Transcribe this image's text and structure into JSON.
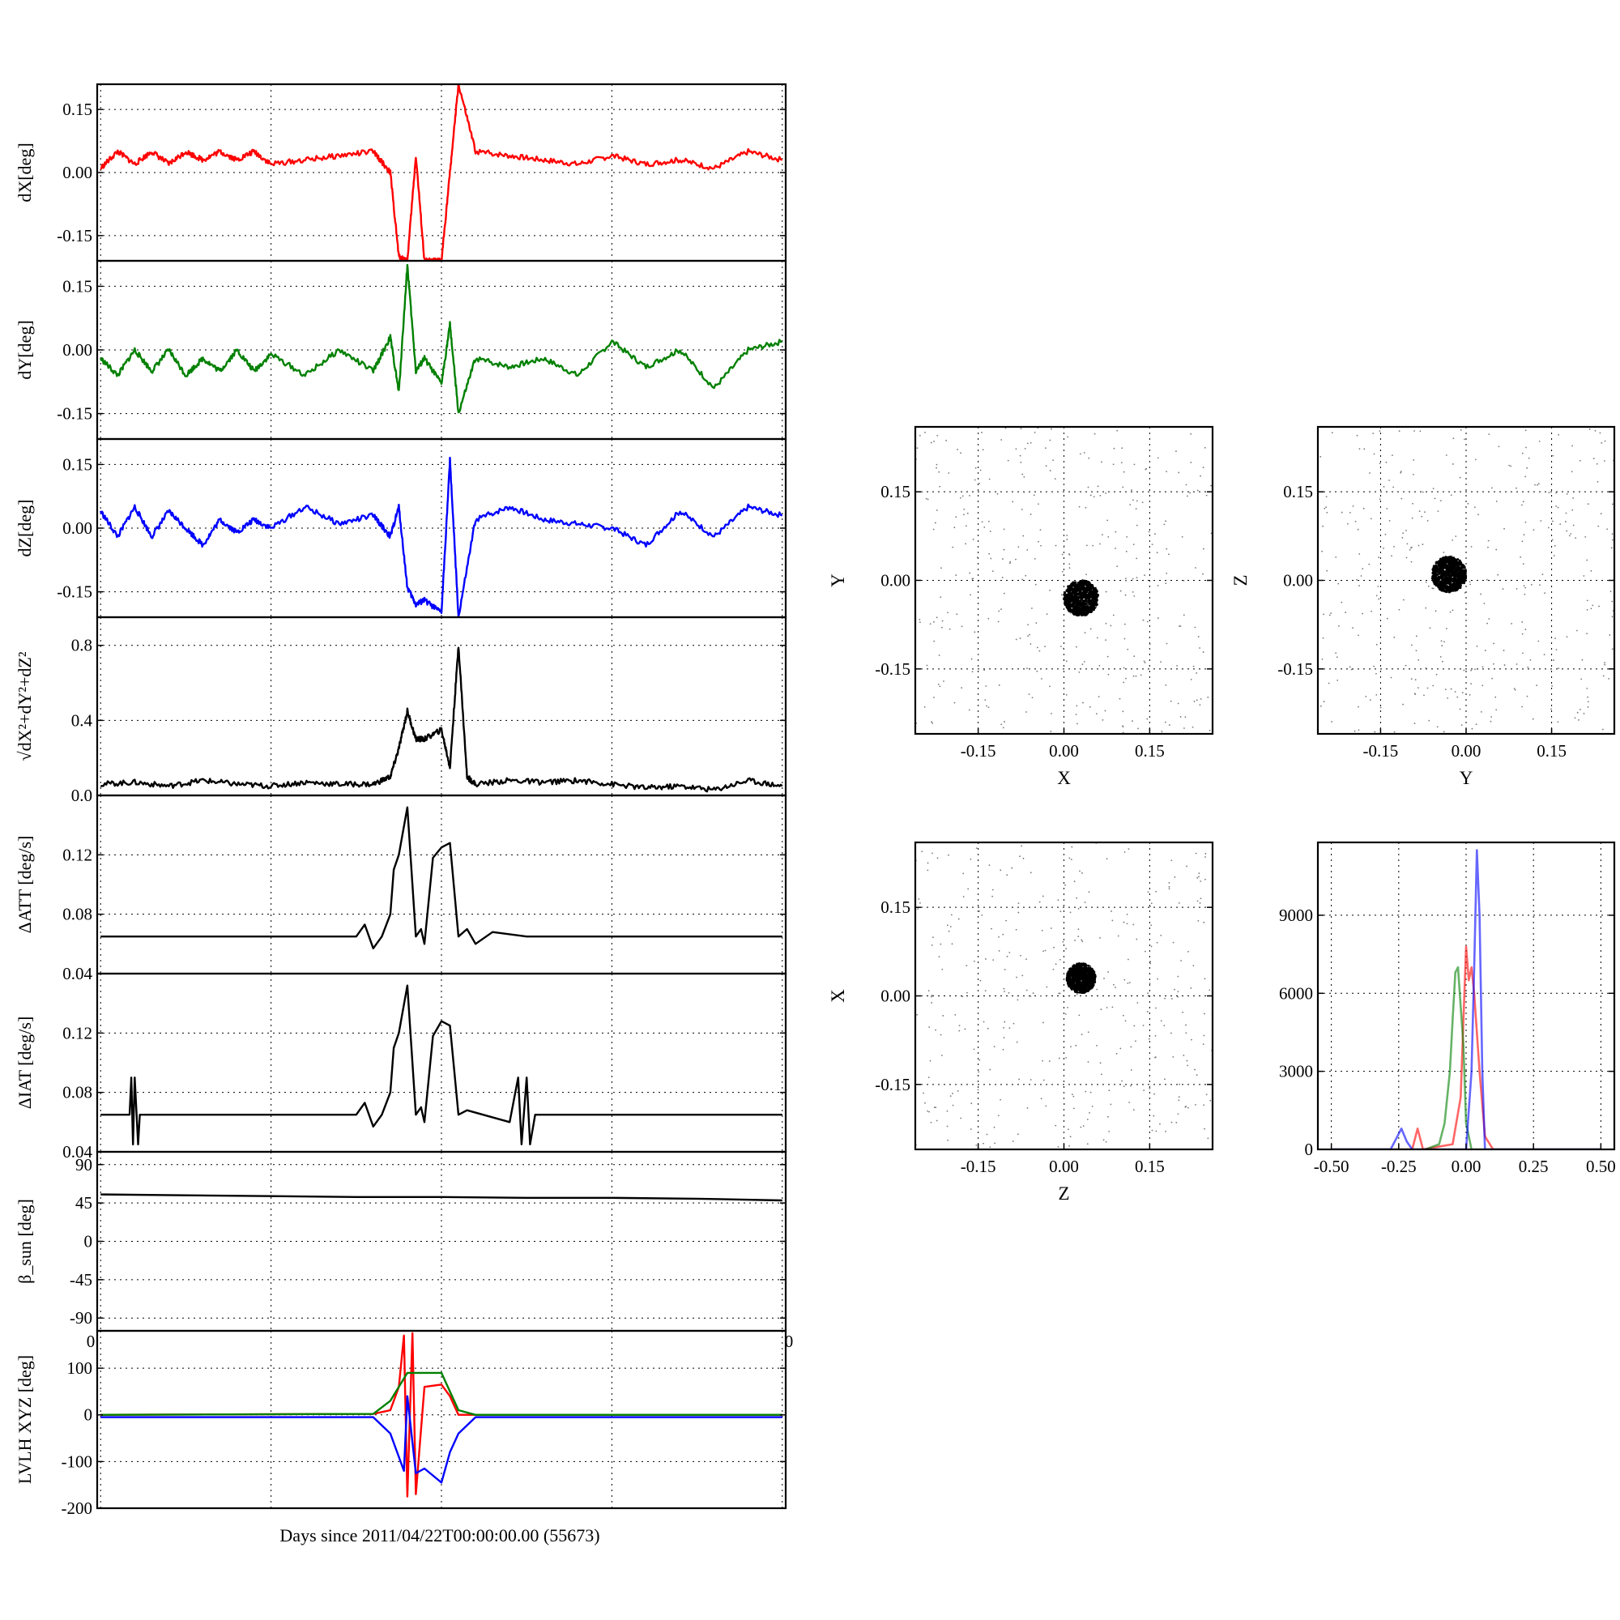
{
  "figure": {
    "xlabel": "Days since 2011/04/22T00:00:00.00 (55673)",
    "overflow_ticks": [
      "0",
      "0"
    ]
  },
  "colors": {
    "x": "#ff0000",
    "y": "#008000",
    "z": "#0000ff",
    "black": "#000000",
    "grid": "#000000"
  },
  "chart_data": [
    {
      "id": "dx",
      "type": "line",
      "ylabel": "dX[deg]",
      "ylim": [
        -0.21,
        0.21
      ],
      "yticks": [
        "0.15",
        "0.00",
        "-0.15"
      ],
      "ytick_values": [
        0.15,
        0.0,
        -0.15
      ],
      "color": "red",
      "grid": true,
      "x": [
        0.0,
        0.1,
        0.2,
        0.3,
        0.4,
        0.5,
        0.6,
        0.7,
        0.8,
        0.9,
        1.0,
        1.2,
        1.4,
        1.6,
        1.7,
        1.75,
        1.8,
        1.85,
        1.9,
        2.0,
        2.05,
        2.1,
        2.2,
        2.4,
        2.6,
        2.8,
        3.0,
        3.2,
        3.4,
        3.6,
        3.8,
        4.0
      ],
      "y": [
        0.01,
        0.05,
        0.02,
        0.05,
        0.02,
        0.05,
        0.03,
        0.05,
        0.03,
        0.05,
        0.02,
        0.03,
        0.04,
        0.05,
        0.0,
        -0.2,
        -0.21,
        0.04,
        -0.21,
        -0.21,
        0.0,
        0.21,
        0.05,
        0.04,
        0.03,
        0.02,
        0.04,
        0.02,
        0.03,
        0.01,
        0.05,
        0.03
      ]
    },
    {
      "id": "dy",
      "type": "line",
      "ylabel": "dY[deg]",
      "ylim": [
        -0.21,
        0.21
      ],
      "yticks": [
        "0.15",
        "0.00",
        "-0.15"
      ],
      "ytick_values": [
        0.15,
        0.0,
        -0.15
      ],
      "color": "green",
      "grid": true,
      "x": [
        0.0,
        0.1,
        0.2,
        0.3,
        0.4,
        0.5,
        0.6,
        0.7,
        0.8,
        0.9,
        1.0,
        1.2,
        1.4,
        1.6,
        1.7,
        1.75,
        1.8,
        1.85,
        1.9,
        2.0,
        2.05,
        2.1,
        2.2,
        2.4,
        2.6,
        2.8,
        3.0,
        3.2,
        3.4,
        3.6,
        3.8,
        4.0
      ],
      "y": [
        -0.02,
        -0.06,
        0.0,
        -0.05,
        0.0,
        -0.06,
        -0.02,
        -0.05,
        0.0,
        -0.05,
        -0.01,
        -0.06,
        0.0,
        -0.05,
        0.03,
        -0.1,
        0.2,
        -0.05,
        -0.02,
        -0.08,
        0.06,
        -0.15,
        -0.02,
        -0.04,
        -0.02,
        -0.06,
        0.02,
        -0.04,
        0.0,
        -0.09,
        0.0,
        0.02
      ]
    },
    {
      "id": "dz",
      "type": "line",
      "ylabel": "dZ[deg]",
      "ylim": [
        -0.21,
        0.21
      ],
      "yticks": [
        "0.15",
        "0.00",
        "-0.15"
      ],
      "ytick_values": [
        0.15,
        0.0,
        -0.15
      ],
      "color": "blue",
      "grid": true,
      "x": [
        0.0,
        0.1,
        0.2,
        0.3,
        0.4,
        0.5,
        0.6,
        0.7,
        0.8,
        0.9,
        1.0,
        1.2,
        1.4,
        1.6,
        1.7,
        1.75,
        1.8,
        1.85,
        1.9,
        2.0,
        2.05,
        2.1,
        2.2,
        2.4,
        2.6,
        2.8,
        3.0,
        3.2,
        3.4,
        3.6,
        3.8,
        4.0
      ],
      "y": [
        0.04,
        -0.02,
        0.05,
        -0.02,
        0.04,
        0.0,
        -0.04,
        0.02,
        -0.01,
        0.02,
        0.0,
        0.05,
        0.01,
        0.03,
        -0.02,
        0.05,
        -0.14,
        -0.18,
        -0.17,
        -0.2,
        0.16,
        -0.21,
        0.02,
        0.05,
        0.02,
        0.01,
        0.0,
        -0.04,
        0.04,
        -0.02,
        0.05,
        0.03
      ]
    },
    {
      "id": "mag",
      "type": "line",
      "ylabel": "√dX²+dY²+dZ²",
      "ylim": [
        0.0,
        0.95
      ],
      "yticks": [
        "0.8",
        "0.4",
        "0.0"
      ],
      "ytick_values": [
        0.8,
        0.4,
        0.0
      ],
      "color": "black",
      "grid": true,
      "x": [
        0.0,
        0.2,
        0.4,
        0.6,
        0.8,
        1.0,
        1.2,
        1.4,
        1.6,
        1.7,
        1.75,
        1.8,
        1.85,
        1.9,
        2.0,
        2.05,
        2.1,
        2.15,
        2.2,
        2.4,
        2.6,
        2.8,
        3.0,
        3.2,
        3.4,
        3.6,
        3.8,
        4.0
      ],
      "y": [
        0.06,
        0.07,
        0.05,
        0.08,
        0.06,
        0.05,
        0.07,
        0.06,
        0.06,
        0.1,
        0.25,
        0.45,
        0.3,
        0.3,
        0.35,
        0.15,
        0.8,
        0.1,
        0.06,
        0.08,
        0.07,
        0.08,
        0.06,
        0.04,
        0.05,
        0.03,
        0.08,
        0.05
      ]
    },
    {
      "id": "datt",
      "type": "line",
      "ylabel": "ΔATT [deg/s]",
      "ylim": [
        0.04,
        0.16
      ],
      "yticks": [
        "0.12",
        "0.08",
        "0.04"
      ],
      "ytick_values": [
        0.12,
        0.08,
        0.04
      ],
      "color": "black",
      "grid": true,
      "x": [
        0.0,
        0.5,
        1.0,
        1.5,
        1.55,
        1.6,
        1.65,
        1.7,
        1.72,
        1.75,
        1.8,
        1.85,
        1.88,
        1.9,
        1.95,
        2.0,
        2.05,
        2.1,
        2.15,
        2.2,
        2.3,
        2.5,
        3.0,
        3.5,
        4.0
      ],
      "y": [
        0.065,
        0.065,
        0.065,
        0.065,
        0.073,
        0.057,
        0.065,
        0.08,
        0.11,
        0.12,
        0.152,
        0.065,
        0.07,
        0.06,
        0.118,
        0.125,
        0.128,
        0.065,
        0.07,
        0.06,
        0.068,
        0.065,
        0.065,
        0.065,
        0.065
      ]
    },
    {
      "id": "diat",
      "type": "line",
      "ylabel": "ΔIAT [deg/s]",
      "ylim": [
        0.04,
        0.16
      ],
      "yticks": [
        "0.12",
        "0.08",
        "0.04"
      ],
      "ytick_values": [
        0.12,
        0.08,
        0.04
      ],
      "color": "black",
      "grid": true,
      "x": [
        0.0,
        0.17,
        0.18,
        0.19,
        0.2,
        0.22,
        0.23,
        0.5,
        1.0,
        1.5,
        1.55,
        1.6,
        1.65,
        1.7,
        1.72,
        1.75,
        1.8,
        1.85,
        1.88,
        1.9,
        1.95,
        2.0,
        2.05,
        2.1,
        2.15,
        2.4,
        2.45,
        2.47,
        2.5,
        2.52,
        2.55,
        3.0,
        3.5,
        4.0
      ],
      "y": [
        0.065,
        0.065,
        0.09,
        0.045,
        0.09,
        0.045,
        0.065,
        0.065,
        0.065,
        0.065,
        0.073,
        0.057,
        0.065,
        0.08,
        0.11,
        0.12,
        0.152,
        0.065,
        0.07,
        0.06,
        0.118,
        0.128,
        0.125,
        0.065,
        0.068,
        0.06,
        0.09,
        0.045,
        0.09,
        0.045,
        0.065,
        0.065,
        0.065,
        0.065
      ]
    },
    {
      "id": "beta",
      "type": "line",
      "ylabel": "β_sun [deg]",
      "ylim": [
        -105,
        105
      ],
      "yticks": [
        "90",
        "45",
        "0",
        "-45",
        "-90"
      ],
      "ytick_values": [
        90,
        45,
        0,
        -45,
        -90
      ],
      "color": "black",
      "grid": true,
      "x": [
        0.0,
        0.5,
        1.0,
        1.5,
        2.0,
        2.5,
        3.0,
        3.5,
        4.0
      ],
      "y": [
        55,
        54,
        53,
        52,
        52,
        51,
        51,
        50,
        48
      ]
    },
    {
      "id": "lvlh",
      "type": "line",
      "ylabel": "LVLH XYZ [deg]",
      "ylim": [
        -200,
        180
      ],
      "yticks": [
        "100",
        "0",
        "-100",
        "-200"
      ],
      "ytick_values": [
        100,
        0,
        -100,
        -200
      ],
      "grid": true,
      "series": [
        {
          "color": "red",
          "x": [
            0.0,
            1.6,
            1.7,
            1.75,
            1.78,
            1.8,
            1.83,
            1.85,
            1.9,
            2.0,
            2.05,
            2.1,
            4.0
          ],
          "y": [
            0,
            2,
            10,
            60,
            170,
            -175,
            175,
            -170,
            60,
            65,
            40,
            0,
            0
          ]
        },
        {
          "color": "green",
          "x": [
            0.0,
            1.6,
            1.7,
            1.8,
            2.0,
            2.1,
            2.2,
            4.0
          ],
          "y": [
            0,
            2,
            30,
            90,
            90,
            10,
            0,
            0
          ]
        },
        {
          "color": "blue",
          "x": [
            0.0,
            1.6,
            1.7,
            1.78,
            1.8,
            1.85,
            1.9,
            2.0,
            2.05,
            2.1,
            2.2,
            4.0
          ],
          "y": [
            -5,
            -5,
            -40,
            -120,
            40,
            -125,
            -115,
            -145,
            -80,
            -40,
            -5,
            -5
          ]
        }
      ]
    },
    {
      "id": "xy",
      "type": "scatter",
      "xlabel": "X",
      "ylabel": "Y",
      "xlim": [
        -0.26,
        0.26
      ],
      "ylim": [
        -0.26,
        0.26
      ],
      "xticks": [
        "-0.15",
        "0.00",
        "0.15"
      ],
      "xtick_values": [
        -0.15,
        0.0,
        0.15
      ],
      "yticks": [
        "0.15",
        "0.00",
        "-0.15"
      ],
      "ytick_values": [
        0.15,
        0.0,
        -0.15
      ],
      "color": "black",
      "grid": true,
      "cluster": {
        "x": 0.03,
        "y": -0.03,
        "spread": 0.03
      }
    },
    {
      "id": "yz",
      "type": "scatter",
      "xlabel": "Y",
      "ylabel": "Z",
      "xlim": [
        -0.26,
        0.26
      ],
      "ylim": [
        -0.26,
        0.26
      ],
      "xticks": [
        "-0.15",
        "0.00",
        "0.15"
      ],
      "xtick_values": [
        -0.15,
        0.0,
        0.15
      ],
      "yticks": [
        "0.15",
        "0.00",
        "-0.15"
      ],
      "ytick_values": [
        0.15,
        0.0,
        -0.15
      ],
      "color": "black",
      "grid": true,
      "cluster": {
        "x": -0.03,
        "y": 0.01,
        "spread": 0.03
      }
    },
    {
      "id": "zx",
      "type": "scatter",
      "xlabel": "Z",
      "ylabel": "X",
      "xlim": [
        -0.26,
        0.26
      ],
      "ylim": [
        -0.26,
        0.26
      ],
      "xticks": [
        "-0.15",
        "0.00",
        "0.15"
      ],
      "xtick_values": [
        -0.15,
        0.0,
        0.15
      ],
      "yticks": [
        "0.15",
        "0.00",
        "-0.15"
      ],
      "ytick_values": [
        0.15,
        0.0,
        -0.15
      ],
      "color": "black",
      "grid": true,
      "cluster": {
        "x": 0.03,
        "y": 0.03,
        "spread": 0.025
      }
    },
    {
      "id": "hist",
      "type": "line",
      "xlim": [
        -0.55,
        0.55
      ],
      "ylim": [
        0,
        11800
      ],
      "xticks": [
        "-0.50",
        "-0.25",
        "0.00",
        "0.25",
        "0.50"
      ],
      "xtick_values": [
        -0.5,
        -0.25,
        0.0,
        0.25,
        0.5
      ],
      "yticks": [
        "9000",
        "6000",
        "3000",
        "0"
      ],
      "ytick_values": [
        9000,
        6000,
        3000,
        0
      ],
      "grid": true,
      "series": [
        {
          "color": "red",
          "x": [
            -0.5,
            -0.2,
            -0.18,
            -0.16,
            -0.05,
            -0.02,
            0.0,
            0.01,
            0.02,
            0.03,
            0.05,
            0.07,
            0.1,
            0.5
          ],
          "y": [
            0,
            0,
            800,
            0,
            200,
            2000,
            7800,
            6500,
            7000,
            6000,
            3000,
            500,
            0,
            0
          ]
        },
        {
          "color": "green",
          "x": [
            -0.5,
            -0.15,
            -0.1,
            -0.08,
            -0.06,
            -0.05,
            -0.04,
            -0.03,
            -0.02,
            -0.01,
            0.0,
            0.02,
            0.5
          ],
          "y": [
            0,
            0,
            200,
            1000,
            3000,
            5000,
            6800,
            7000,
            5500,
            4000,
            1000,
            0,
            0
          ]
        },
        {
          "color": "blue",
          "x": [
            -0.5,
            -0.28,
            -0.26,
            -0.24,
            -0.22,
            -0.2,
            0.0,
            0.01,
            0.02,
            0.03,
            0.04,
            0.05,
            0.06,
            0.07,
            0.5
          ],
          "y": [
            0,
            0,
            400,
            800,
            300,
            0,
            0,
            1500,
            3000,
            7000,
            11500,
            9000,
            3000,
            0,
            0
          ]
        }
      ]
    }
  ]
}
